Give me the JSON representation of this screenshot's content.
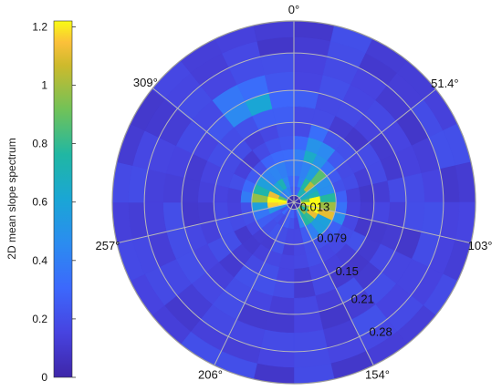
{
  "chart_data": {
    "type": "heatmap",
    "subtype": "polar",
    "colorbar": {
      "label": "2D mean slope spectrum",
      "ticks": [
        0,
        0.2,
        0.4,
        0.6,
        0.8,
        1,
        1.2
      ],
      "tick_labels": [
        "0",
        "0.2",
        "0.4",
        "0.6",
        "0.8",
        "1",
        "1.2"
      ],
      "clim": [
        0,
        1.22
      ],
      "colormap": "parula"
    },
    "angle_ticks_deg": [
      0,
      51.4,
      103,
      154,
      206,
      257,
      309
    ],
    "angle_labels": [
      "0°",
      "51.4°",
      "103°",
      "154°",
      "206°",
      "257°",
      "309°"
    ],
    "radial_ticks": [
      0.013,
      0.079,
      0.15,
      0.21,
      0.28
    ],
    "radial_labels": [
      "0.013",
      "0.079",
      "0.15",
      "0.21",
      "0.28"
    ],
    "rlim": [
      0,
      0.34
    ],
    "angular_bins": 28,
    "radial_edges": [
      0.013,
      0.03,
      0.05,
      0.079,
      0.1,
      0.125,
      0.15,
      0.18,
      0.21,
      0.245,
      0.28,
      0.31,
      0.34
    ],
    "background_level": 0.15,
    "hotspots": [
      {
        "angle_deg": 270,
        "r": 0.03,
        "value": 1.0
      },
      {
        "angle_deg": 285,
        "r": 0.045,
        "value": 0.75
      },
      {
        "angle_deg": 45,
        "r": 0.04,
        "value": 0.9
      },
      {
        "angle_deg": 90,
        "r": 0.03,
        "value": 1.1
      },
      {
        "angle_deg": 110,
        "r": 0.05,
        "value": 0.85
      },
      {
        "angle_deg": 140,
        "r": 0.03,
        "value": 0.7
      },
      {
        "angle_deg": 330,
        "r": 0.05,
        "value": 0.55
      },
      {
        "angle_deg": 20,
        "r": 0.1,
        "value": 0.45
      },
      {
        "angle_deg": 340,
        "r": 0.2,
        "value": 0.4
      }
    ],
    "grid": true
  },
  "colors": {
    "grid": "#b8b8b8",
    "outer_circle": "#9a9a9a",
    "text": "#111111"
  }
}
